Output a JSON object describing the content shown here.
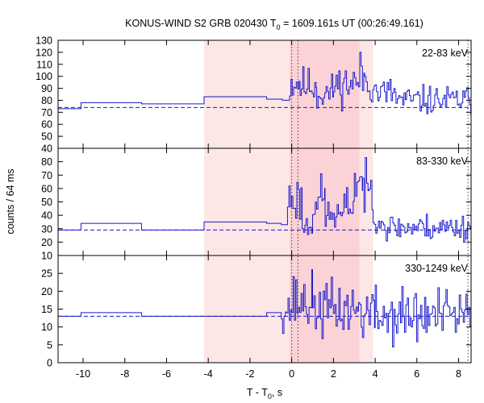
{
  "title": "KONUS-WIND S2 GRB 020430 T0 = 1609.161s UT (00:26:49.161)",
  "title_parts": {
    "lead": "KONUS-WIND S2 GRB 020430 T",
    "sub": "0",
    "tail": " = 1609.161s UT (00:26:49.161)"
  },
  "ylabel": "counts / 64 ms",
  "xlabel_parts": {
    "lead": "T - T",
    "sub": "0",
    "tail": ", s"
  },
  "colors": {
    "curve": "#1a1acc",
    "background_line": "#1a1acc",
    "shade_light": "#fde6e6",
    "shade_dark": "#fbd3d6",
    "frame": "#000000"
  },
  "chart_data": [
    {
      "type": "line",
      "panel": "upper",
      "band_label": "22-83 keV",
      "ylim": [
        40,
        130
      ],
      "yticks": [
        40,
        50,
        60,
        70,
        80,
        90,
        100,
        110,
        120,
        130
      ],
      "background_level": 74,
      "series": [
        {
          "seed": 11,
          "steps": [
            [
              -11.2,
              -10.1,
              73
            ],
            [
              -10.1,
              -7.2,
              78
            ],
            [
              -7.2,
              -4.2,
              77
            ],
            [
              -4.2,
              -1.2,
              83
            ],
            [
              -1.2,
              -0.45,
              81
            ],
            [
              -0.45,
              -0.1,
              80
            ],
            [
              -0.1,
              0.4,
              95,
              9
            ],
            [
              0.4,
              1.2,
              92,
              8
            ],
            [
              1.2,
              2.0,
              86,
              8
            ],
            [
              2.0,
              2.5,
              93,
              8
            ],
            [
              2.5,
              3.2,
              94,
              9
            ],
            [
              3.2,
              3.5,
              100,
              10
            ],
            [
              3.5,
              4.0,
              96,
              10
            ],
            [
              4.0,
              5.0,
              86,
              7
            ],
            [
              5.0,
              8.6,
              80,
              6
            ]
          ]
        }
      ]
    },
    {
      "type": "line",
      "panel": "middle",
      "band_label": "83-330 keV",
      "ylim": [
        10,
        90
      ],
      "yticks": [
        10,
        20,
        30,
        40,
        50,
        60,
        70,
        80
      ],
      "background_level": 29,
      "series": [
        {
          "seed": 23,
          "steps": [
            [
              -11.2,
              -10.1,
              29
            ],
            [
              -10.1,
              -7.2,
              34
            ],
            [
              -7.2,
              -4.2,
              29
            ],
            [
              -4.2,
              -1.2,
              35
            ],
            [
              -1.2,
              -0.5,
              34
            ],
            [
              -0.5,
              -0.2,
              33
            ],
            [
              -0.2,
              0.5,
              52,
              9
            ],
            [
              0.5,
              1.0,
              32,
              5
            ],
            [
              1.0,
              1.6,
              52,
              9
            ],
            [
              1.6,
              2.5,
              40,
              6
            ],
            [
              2.5,
              3.0,
              48,
              7
            ],
            [
              3.0,
              3.4,
              66,
              8
            ],
            [
              3.4,
              3.9,
              58,
              9
            ],
            [
              3.9,
              4.4,
              37,
              4
            ],
            [
              4.4,
              8.6,
              31,
              5
            ]
          ]
        }
      ]
    },
    {
      "type": "line",
      "panel": "lower",
      "band_label": "330-1249 keV",
      "ylim": [
        0,
        30
      ],
      "yticks": [
        0,
        5,
        10,
        15,
        20,
        25
      ],
      "background_level": 13,
      "series": [
        {
          "seed": 37,
          "steps": [
            [
              -11.2,
              -10.1,
              13
            ],
            [
              -10.1,
              -7.2,
              14
            ],
            [
              -7.2,
              -4.2,
              13
            ],
            [
              -4.2,
              -1.2,
              13
            ],
            [
              -1.2,
              -0.5,
              14
            ],
            [
              -0.5,
              0.0,
              15,
              3
            ],
            [
              0.0,
              1.0,
              17,
              4
            ],
            [
              1.0,
              2.0,
              15,
              4
            ],
            [
              2.0,
              3.2,
              15,
              4
            ],
            [
              3.2,
              4.0,
              14,
              4
            ],
            [
              4.0,
              8.6,
              13,
              4
            ]
          ]
        }
      ]
    }
  ],
  "shared": {
    "xlim": [
      -11.2,
      8.6
    ],
    "xticks": [
      -10,
      -8,
      -6,
      -4,
      -2,
      0,
      2,
      4,
      6,
      8
    ],
    "shaded_regions": [
      {
        "from": -4.2,
        "to": 3.9,
        "tone": "light"
      },
      {
        "from": -0.1,
        "to": 3.25,
        "tone": "dark"
      }
    ],
    "vertical_dotted_lines": [
      0.0,
      0.3,
      8.45
    ]
  }
}
